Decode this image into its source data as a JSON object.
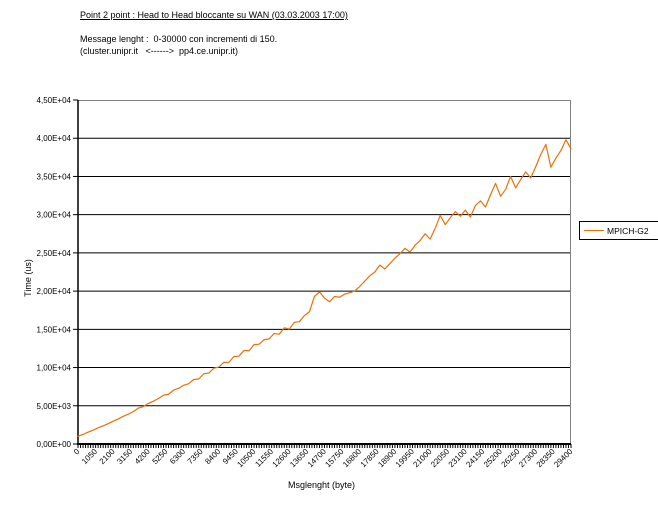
{
  "chart_data": {
    "type": "line",
    "title": "Point 2 point : Head to Head bloccante su WAN (03.03.2003 17:00)",
    "subtitle_line1": "Message lenght :  0-30000 con incrementi di 150.",
    "subtitle_line2": "(cluster.unipr.it   <------>  pp4.ce.unipr.it)",
    "xlabel": "Msglenght (byte)",
    "ylabel": "Time (us)",
    "xlim": [
      0,
      29400
    ],
    "ylim": [
      0,
      45000
    ],
    "grid": "horizontal-black",
    "x_tick_step": 1050,
    "x_minor_tick_step": 150,
    "x_tick_labels": [
      "0",
      "1050",
      "2100",
      "3150",
      "4200",
      "5250",
      "6300",
      "7350",
      "8400",
      "9450",
      "10500",
      "11550",
      "12600",
      "13650",
      "14700",
      "15750",
      "16800",
      "17850",
      "18900",
      "19950",
      "21000",
      "22050",
      "23100",
      "24150",
      "25200",
      "26250",
      "27300",
      "28350",
      "29400"
    ],
    "y_tick_values": [
      0,
      5000,
      10000,
      15000,
      20000,
      25000,
      30000,
      35000,
      40000,
      45000
    ],
    "y_tick_labels": [
      "0,00E+00",
      "5,00E+03",
      "1,00E+04",
      "1,50E+04",
      "2,00E+04",
      "2,50E+04",
      "3,00E+04",
      "3,50E+04",
      "4,00E+04",
      "4,50E+04"
    ],
    "legend": {
      "label": "MPICH-G2",
      "position": "right"
    },
    "colors": {
      "series": "#E8710A",
      "gridline": "#000000",
      "plot_border": "#808080",
      "axis": "#000000",
      "text": "#000000",
      "background": "#FFFFFF"
    },
    "series": [
      {
        "name": "MPICH-G2",
        "points": [
          [
            0,
            1000
          ],
          [
            300,
            1260
          ],
          [
            600,
            1540
          ],
          [
            900,
            1810
          ],
          [
            1200,
            2120
          ],
          [
            1500,
            2380
          ],
          [
            1800,
            2660
          ],
          [
            2100,
            2980
          ],
          [
            2400,
            3280
          ],
          [
            2700,
            3620
          ],
          [
            3000,
            3900
          ],
          [
            3300,
            4250
          ],
          [
            3600,
            4700
          ],
          [
            3900,
            4890
          ],
          [
            4200,
            5310
          ],
          [
            4500,
            5600
          ],
          [
            4800,
            5950
          ],
          [
            5100,
            6380
          ],
          [
            5400,
            6510
          ],
          [
            5700,
            7050
          ],
          [
            6000,
            7280
          ],
          [
            6300,
            7680
          ],
          [
            6600,
            7890
          ],
          [
            6900,
            8440
          ],
          [
            7200,
            8500
          ],
          [
            7500,
            9190
          ],
          [
            7800,
            9280
          ],
          [
            8100,
            9920
          ],
          [
            8400,
            10060
          ],
          [
            8700,
            10680
          ],
          [
            9000,
            10690
          ],
          [
            9300,
            11450
          ],
          [
            9600,
            11490
          ],
          [
            9900,
            12240
          ],
          [
            10200,
            12200
          ],
          [
            10500,
            13000
          ],
          [
            10800,
            13060
          ],
          [
            11100,
            13650
          ],
          [
            11400,
            13750
          ],
          [
            11700,
            14460
          ],
          [
            12000,
            14350
          ],
          [
            12300,
            15200
          ],
          [
            12600,
            15030
          ],
          [
            12900,
            15920
          ],
          [
            13200,
            16000
          ],
          [
            13500,
            16800
          ],
          [
            13800,
            17300
          ],
          [
            14100,
            19300
          ],
          [
            14400,
            19900
          ],
          [
            14700,
            19100
          ],
          [
            15000,
            18600
          ],
          [
            15300,
            19300
          ],
          [
            15600,
            19200
          ],
          [
            15900,
            19600
          ],
          [
            16200,
            19800
          ],
          [
            16500,
            20000
          ],
          [
            16800,
            20600
          ],
          [
            17100,
            21300
          ],
          [
            17400,
            22000
          ],
          [
            17700,
            22500
          ],
          [
            18000,
            23400
          ],
          [
            18300,
            22900
          ],
          [
            18600,
            23600
          ],
          [
            18900,
            24300
          ],
          [
            19200,
            24900
          ],
          [
            19500,
            25600
          ],
          [
            19800,
            25100
          ],
          [
            20100,
            26000
          ],
          [
            20400,
            26600
          ],
          [
            20700,
            27500
          ],
          [
            21000,
            26800
          ],
          [
            21300,
            28200
          ],
          [
            21600,
            29900
          ],
          [
            21900,
            28700
          ],
          [
            22200,
            29600
          ],
          [
            22500,
            30400
          ],
          [
            22800,
            29800
          ],
          [
            23100,
            30600
          ],
          [
            23400,
            29700
          ],
          [
            23700,
            31200
          ],
          [
            24000,
            31800
          ],
          [
            24300,
            31000
          ],
          [
            24600,
            32600
          ],
          [
            24900,
            34100
          ],
          [
            25200,
            32400
          ],
          [
            25500,
            33300
          ],
          [
            25800,
            35000
          ],
          [
            26100,
            33500
          ],
          [
            26400,
            34600
          ],
          [
            26700,
            35600
          ],
          [
            27000,
            34800
          ],
          [
            27300,
            36300
          ],
          [
            27600,
            37900
          ],
          [
            27900,
            39200
          ],
          [
            28200,
            36200
          ],
          [
            28500,
            37400
          ],
          [
            28800,
            38400
          ],
          [
            29100,
            39800
          ],
          [
            29400,
            38600
          ]
        ]
      }
    ]
  }
}
